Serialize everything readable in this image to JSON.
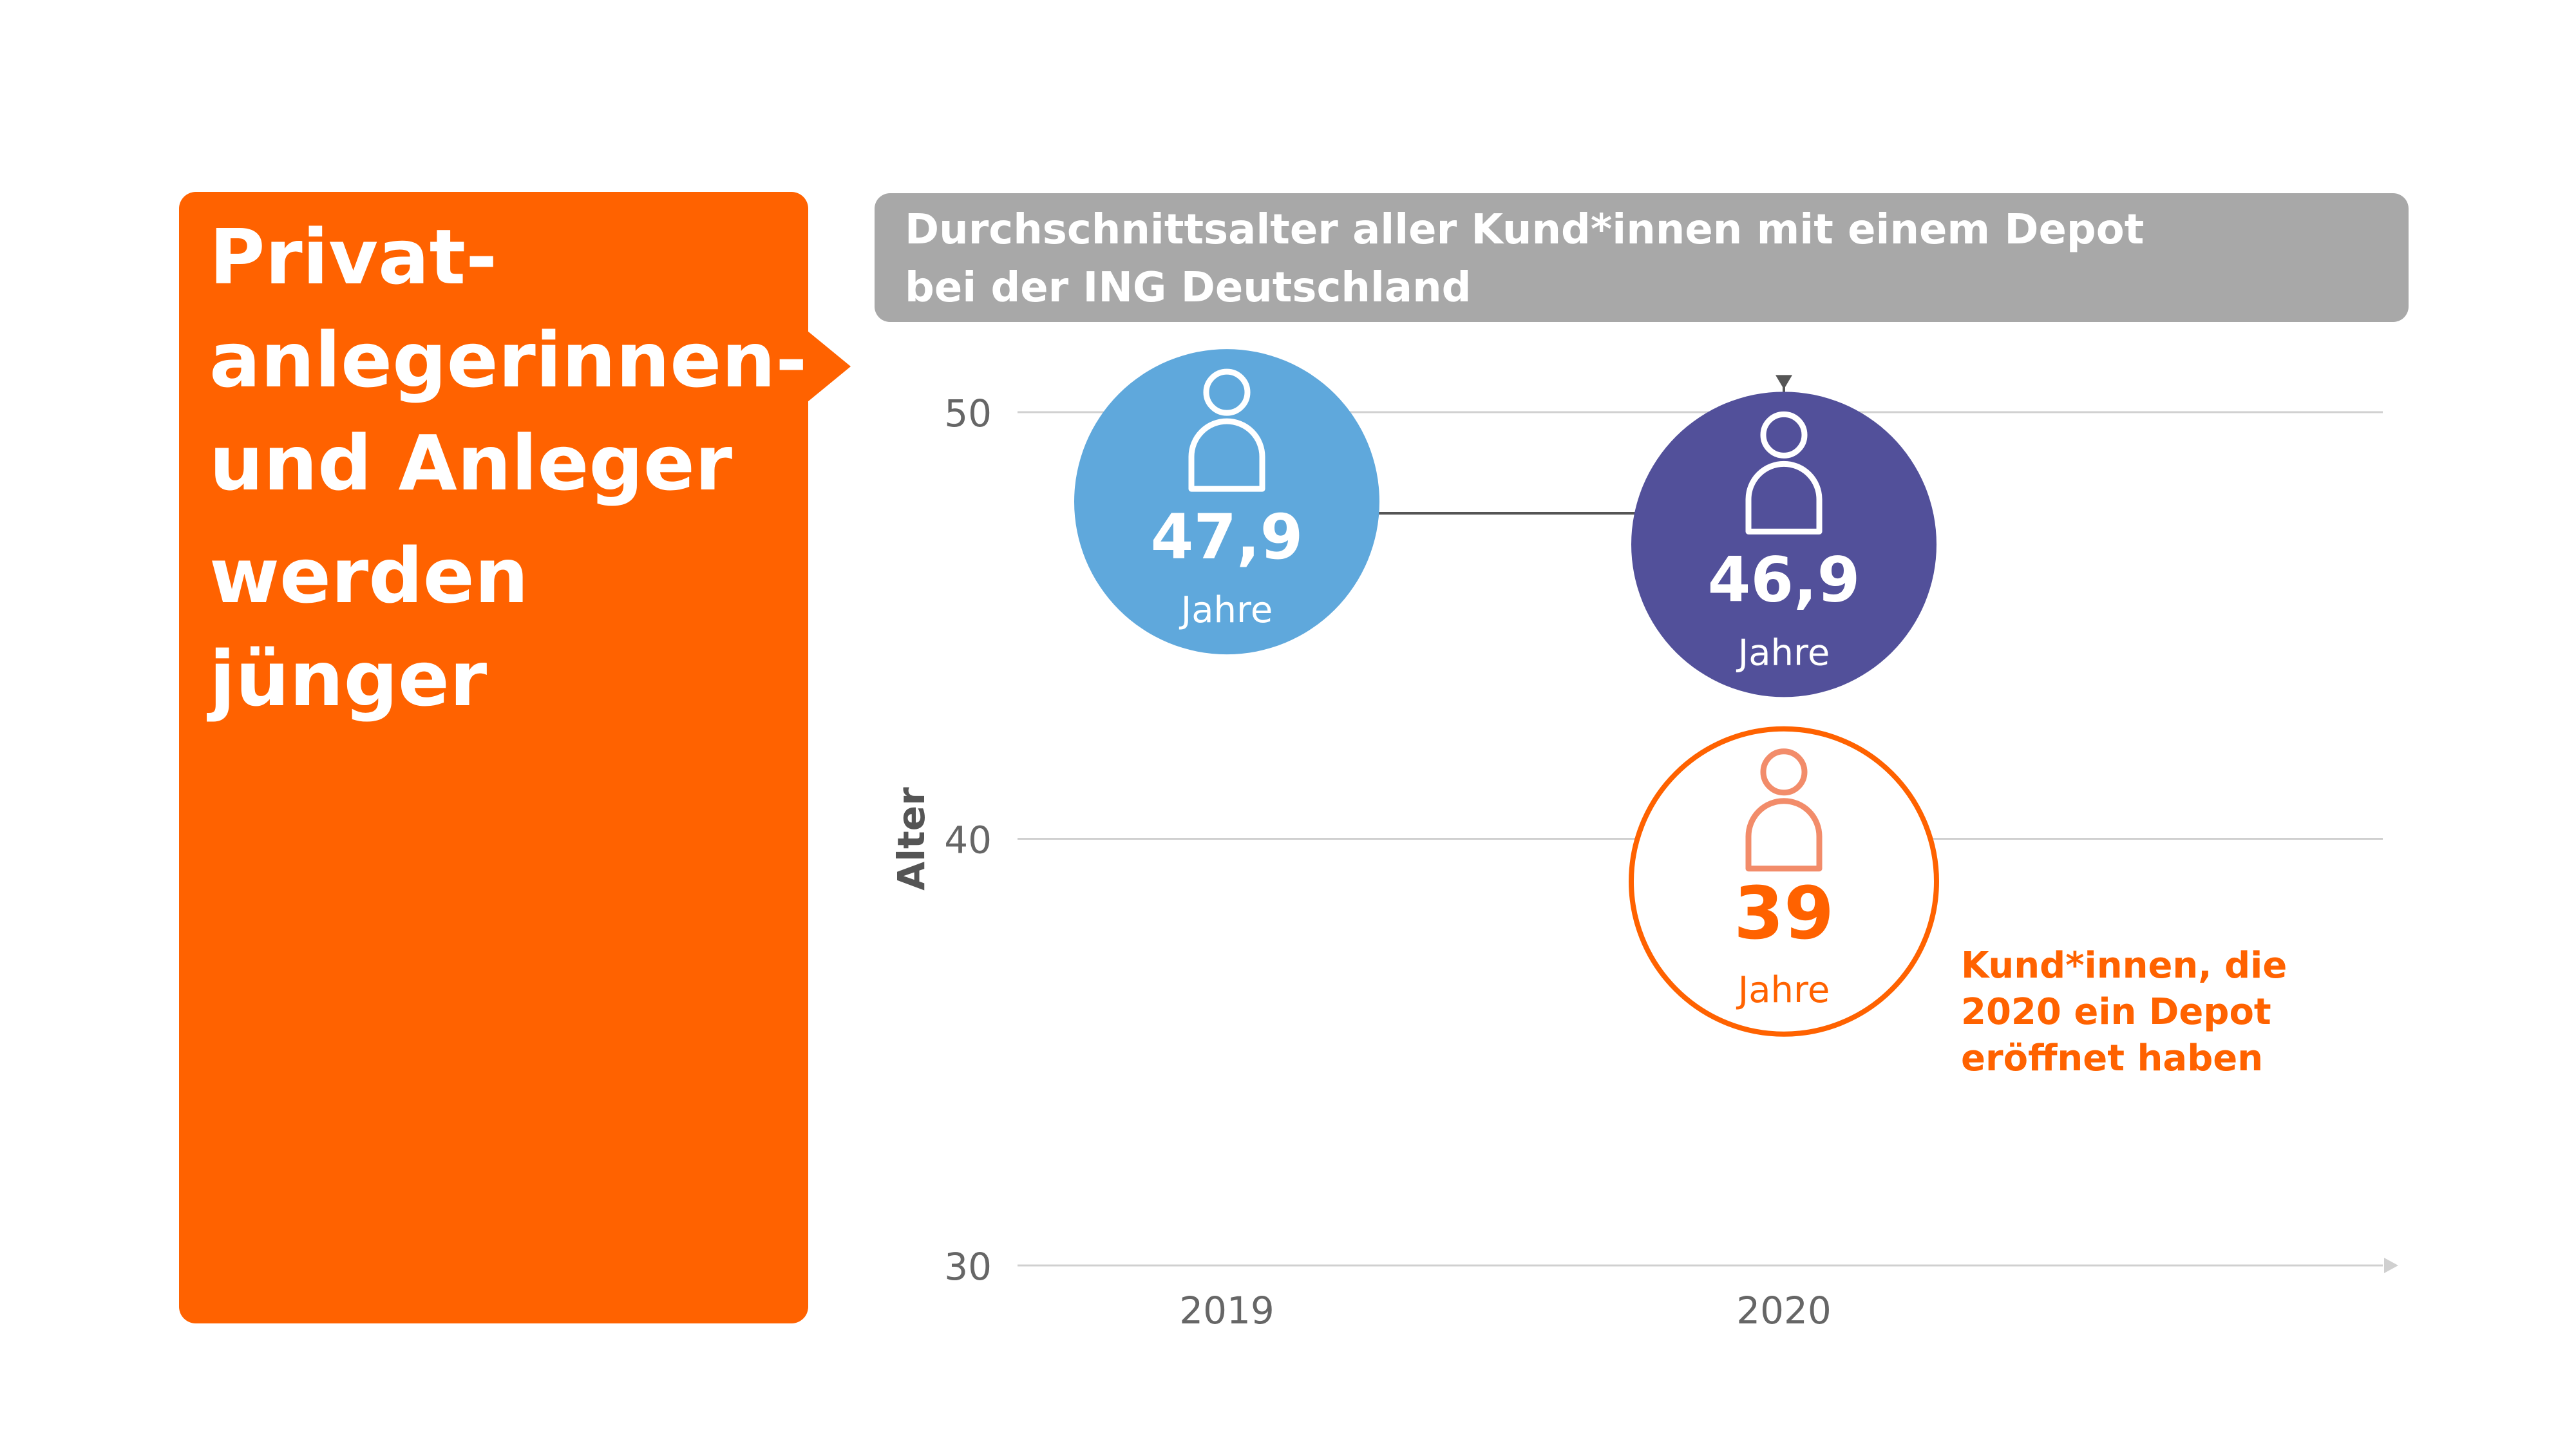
{
  "headline": {
    "lines": [
      "Privat-",
      "anlegerinnen-",
      "und Anleger",
      "werden",
      "jünger"
    ],
    "background_color": "#FF6200"
  },
  "chart_title": {
    "lines": [
      "Durchschnittsalter aller Kund*innen mit einem Depot",
      "bei der ING Deutschland"
    ],
    "background_color": "#A8A8A8"
  },
  "chart_data": {
    "type": "scatter",
    "title": "Durchschnittsalter aller Kund*innen mit einem Depot bei der ING Deutschland",
    "xlabel": "",
    "ylabel": "Alter",
    "categories": [
      "2019",
      "2020"
    ],
    "ylim": [
      30,
      50
    ],
    "yticks": [
      30,
      40,
      50
    ],
    "grid": true,
    "points": [
      {
        "category": "2019",
        "value": 47.9,
        "label": "47,9",
        "unit": "Jahre",
        "style": "filled",
        "color": "#5FA8DC"
      },
      {
        "category": "2020",
        "value": 46.9,
        "label": "46,9",
        "unit": "Jahre",
        "style": "filled",
        "color": "#52509A"
      },
      {
        "category": "2020",
        "value": 39,
        "label": "39",
        "unit": "Jahre",
        "style": "outline",
        "color": "#FF6200",
        "annotation": [
          "Kund*innen, die",
          "2020 ein Depot",
          "eröffnet haben"
        ]
      }
    ],
    "connector": {
      "from": 0,
      "to": 1,
      "color": "#555555"
    },
    "colors": {
      "axis": "#D0D0D0",
      "tick_text": "#666666",
      "axis_label": "#555555",
      "text_white": "#FFFFFF",
      "outline_icon": "#F28C6A"
    }
  }
}
